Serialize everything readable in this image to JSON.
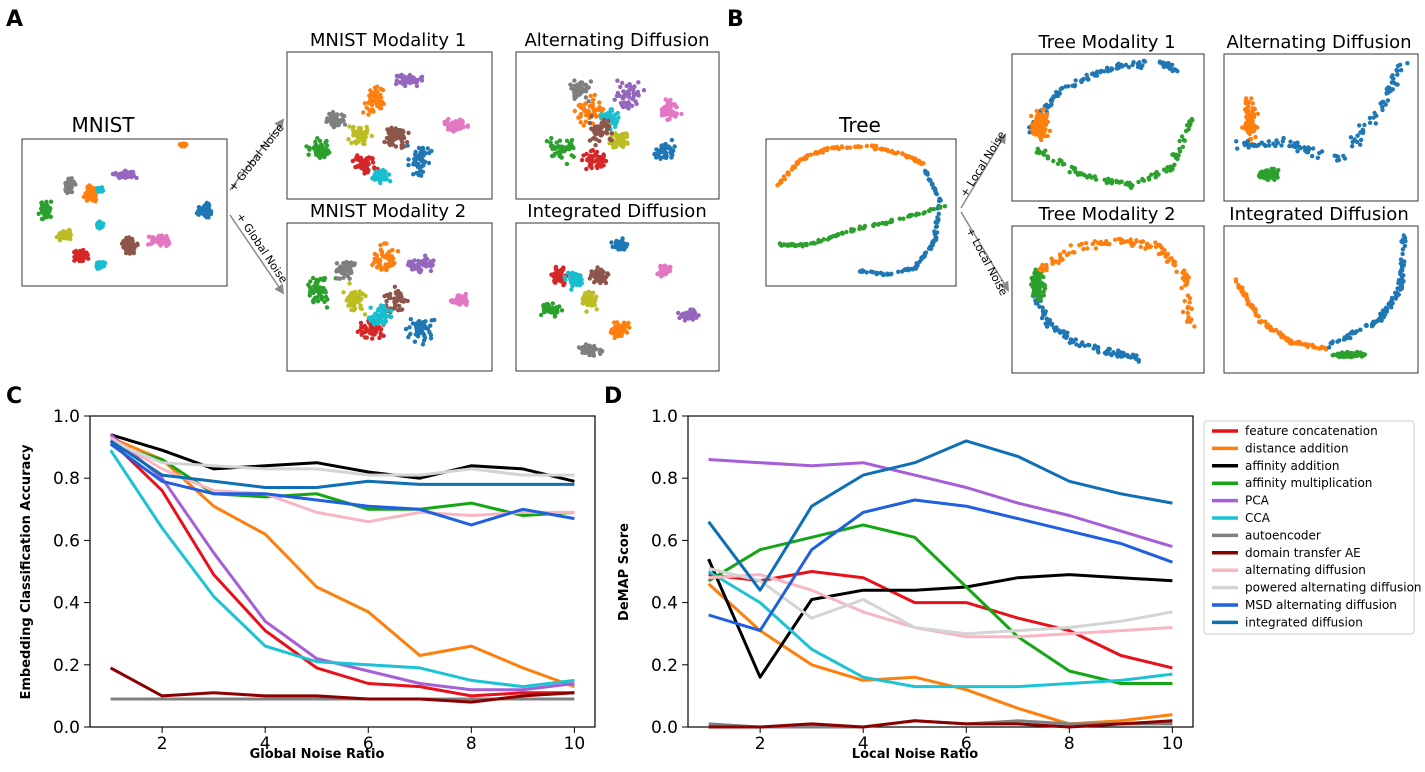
{
  "panels": {
    "A": {
      "label": "A",
      "source_title": "MNIST",
      "arrow_top": "+ Global Noise",
      "arrow_bottom": "+ Global Noise",
      "plots": [
        {
          "title": "MNIST Modality 1",
          "key": "A1"
        },
        {
          "title": "Alternating Diffusion",
          "key": "A2"
        },
        {
          "title": "MNIST Modality 2",
          "key": "A3"
        },
        {
          "title": "Integrated Diffusion",
          "key": "A4"
        }
      ]
    },
    "B": {
      "label": "B",
      "source_title": "Tree",
      "arrow_top": "+ Local Noise",
      "arrow_bottom": "+ Local Noise",
      "plots": [
        {
          "title": "Tree Modality 1",
          "key": "B1"
        },
        {
          "title": "Alternating Diffusion",
          "key": "B2"
        },
        {
          "title": "Tree Modality 2",
          "key": "B3"
        },
        {
          "title": "Integrated Diffusion",
          "key": "B4"
        }
      ]
    }
  },
  "colors": {
    "digits": [
      "#1f77b4",
      "#ff7f0e",
      "#2ca02c",
      "#d62728",
      "#9467bd",
      "#8c564b",
      "#e377c2",
      "#7f7f7f",
      "#bcbd22",
      "#17becf"
    ],
    "tree": [
      "#ff7f0e",
      "#1f77b4",
      "#2ca02c"
    ]
  },
  "chart_data": [
    {
      "panel": "C",
      "type": "line",
      "xlabel": "Global Noise Ratio",
      "ylabel": "Embedding Classification Accuracy",
      "xlim": [
        0.6,
        10.4
      ],
      "ylim": [
        0.0,
        1.0
      ],
      "xticks": [
        2,
        4,
        6,
        8,
        10
      ],
      "yticks": [
        0.0,
        0.2,
        0.4,
        0.6,
        0.8,
        1.0
      ],
      "x": [
        1,
        2,
        3,
        4,
        5,
        6,
        7,
        8,
        9,
        10
      ],
      "series": [
        {
          "name": "feature concatenation",
          "color": "#e8111a",
          "values": [
            0.92,
            0.76,
            0.49,
            0.31,
            0.19,
            0.14,
            0.13,
            0.1,
            0.11,
            0.11
          ]
        },
        {
          "name": "distance addition",
          "color": "#ff7f0e",
          "values": [
            0.93,
            0.86,
            0.71,
            0.62,
            0.45,
            0.37,
            0.23,
            0.26,
            0.19,
            0.13
          ]
        },
        {
          "name": "affinity addition",
          "color": "#000000",
          "values": [
            0.94,
            0.89,
            0.83,
            0.84,
            0.85,
            0.82,
            0.8,
            0.84,
            0.83,
            0.79
          ]
        },
        {
          "name": "affinity multiplication",
          "color": "#14a614",
          "values": [
            0.91,
            0.86,
            0.75,
            0.74,
            0.75,
            0.7,
            0.7,
            0.72,
            0.68,
            0.69
          ]
        },
        {
          "name": "PCA",
          "color": "#a65fd6",
          "values": [
            0.94,
            0.8,
            0.56,
            0.34,
            0.22,
            0.18,
            0.14,
            0.12,
            0.12,
            0.14
          ]
        },
        {
          "name": "CCA",
          "color": "#1cc3d4",
          "values": [
            0.89,
            0.64,
            0.42,
            0.26,
            0.21,
            0.2,
            0.19,
            0.15,
            0.13,
            0.15
          ]
        },
        {
          "name": "autoencoder",
          "color": "#808080",
          "values": [
            0.09,
            0.09,
            0.09,
            0.09,
            0.09,
            0.09,
            0.09,
            0.09,
            0.09,
            0.09
          ]
        },
        {
          "name": "domain transfer AE",
          "color": "#8b0000",
          "values": [
            0.19,
            0.1,
            0.11,
            0.1,
            0.1,
            0.09,
            0.09,
            0.08,
            0.1,
            0.11
          ]
        },
        {
          "name": "alternating diffusion",
          "color": "#f7b6c2",
          "values": [
            0.93,
            0.83,
            0.76,
            0.75,
            0.69,
            0.66,
            0.69,
            0.68,
            0.69,
            0.69
          ]
        },
        {
          "name": "powered alternating diffusion",
          "color": "#d4d4d4",
          "values": [
            0.92,
            0.85,
            0.84,
            0.83,
            0.83,
            0.81,
            0.81,
            0.83,
            0.81,
            0.81
          ]
        },
        {
          "name": "MSD alternating diffusion",
          "color": "#1f5fe0",
          "values": [
            0.91,
            0.79,
            0.75,
            0.75,
            0.73,
            0.71,
            0.7,
            0.65,
            0.7,
            0.67
          ]
        },
        {
          "name": "integrated diffusion",
          "color": "#0f6fb5",
          "values": [
            0.92,
            0.81,
            0.79,
            0.77,
            0.77,
            0.79,
            0.78,
            0.78,
            0.78,
            0.78
          ]
        }
      ]
    },
    {
      "panel": "D",
      "type": "line",
      "xlabel": "Local Noise Ratio",
      "ylabel": "DeMAP Score",
      "xlim": [
        0.6,
        10.4
      ],
      "ylim": [
        0.0,
        1.0
      ],
      "xticks": [
        2,
        4,
        6,
        8,
        10
      ],
      "yticks": [
        0.0,
        0.2,
        0.4,
        0.6,
        0.8,
        1.0
      ],
      "x": [
        1,
        2,
        3,
        4,
        5,
        6,
        7,
        8,
        9,
        10
      ],
      "series": [
        {
          "name": "feature concatenation",
          "color": "#e8111a",
          "values": [
            0.49,
            0.47,
            0.5,
            0.48,
            0.4,
            0.4,
            0.35,
            0.31,
            0.23,
            0.19
          ]
        },
        {
          "name": "distance addition",
          "color": "#ff7f0e",
          "values": [
            0.46,
            0.31,
            0.2,
            0.15,
            0.16,
            0.12,
            0.06,
            0.01,
            0.02,
            0.04
          ]
        },
        {
          "name": "affinity addition",
          "color": "#000000",
          "values": [
            0.54,
            0.16,
            0.41,
            0.44,
            0.44,
            0.45,
            0.48,
            0.49,
            0.48,
            0.47
          ]
        },
        {
          "name": "affinity multiplication",
          "color": "#14a614",
          "values": [
            0.47,
            0.57,
            0.61,
            0.65,
            0.61,
            0.45,
            0.29,
            0.18,
            0.14,
            0.14
          ]
        },
        {
          "name": "PCA",
          "color": "#a65fd6",
          "values": [
            0.86,
            0.85,
            0.84,
            0.85,
            0.81,
            0.77,
            0.72,
            0.68,
            0.63,
            0.58
          ]
        },
        {
          "name": "CCA",
          "color": "#1cc3d4",
          "values": [
            0.5,
            0.4,
            0.25,
            0.16,
            0.13,
            0.13,
            0.13,
            0.14,
            0.15,
            0.17
          ]
        },
        {
          "name": "autoencoder",
          "color": "#808080",
          "values": [
            0.01,
            0.0,
            0.0,
            0.0,
            0.02,
            0.01,
            0.02,
            0.01,
            0.01,
            0.01
          ]
        },
        {
          "name": "domain transfer AE",
          "color": "#8b0000",
          "values": [
            0.0,
            0.0,
            0.01,
            0.0,
            0.02,
            0.01,
            0.01,
            0.0,
            0.01,
            0.02
          ]
        },
        {
          "name": "alternating diffusion",
          "color": "#f7b6c2",
          "values": [
            0.48,
            0.49,
            0.44,
            0.37,
            0.32,
            0.29,
            0.29,
            0.3,
            0.31,
            0.32
          ]
        },
        {
          "name": "powered alternating diffusion",
          "color": "#d4d4d4",
          "values": [
            0.51,
            0.47,
            0.35,
            0.41,
            0.32,
            0.3,
            0.31,
            0.32,
            0.34,
            0.37
          ]
        },
        {
          "name": "MSD alternating diffusion",
          "color": "#1f5fe0",
          "values": [
            0.36,
            0.31,
            0.57,
            0.69,
            0.73,
            0.71,
            0.67,
            0.63,
            0.59,
            0.53
          ]
        },
        {
          "name": "integrated diffusion",
          "color": "#0f6fb5",
          "values": [
            0.66,
            0.44,
            0.71,
            0.81,
            0.85,
            0.92,
            0.87,
            0.79,
            0.75,
            0.72
          ]
        }
      ]
    }
  ],
  "legend": {
    "placement": "right of panel D",
    "entries": [
      "feature concatenation",
      "distance addition",
      "affinity addition",
      "affinity multiplication",
      "PCA",
      "CCA",
      "autoencoder",
      "domain transfer AE",
      "alternating diffusion",
      "powered alternating diffusion",
      "MSD alternating diffusion",
      "integrated diffusion"
    ]
  },
  "labels": {
    "C": "C",
    "D": "D"
  }
}
